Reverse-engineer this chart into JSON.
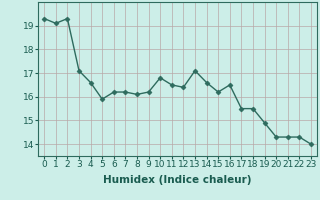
{
  "x": [
    0,
    1,
    2,
    3,
    4,
    5,
    6,
    7,
    8,
    9,
    10,
    11,
    12,
    13,
    14,
    15,
    16,
    17,
    18,
    19,
    20,
    21,
    22,
    23
  ],
  "y": [
    19.3,
    19.1,
    19.3,
    17.1,
    16.6,
    15.9,
    16.2,
    16.2,
    16.1,
    16.2,
    16.8,
    16.5,
    16.4,
    17.1,
    16.6,
    16.2,
    16.5,
    15.5,
    15.5,
    14.9,
    14.3,
    14.3,
    14.3,
    14.0
  ],
  "line_color": "#2e6b5e",
  "marker": "D",
  "marker_size": 2.5,
  "bg_color": "#cceee8",
  "grid_color": "#b8a8a8",
  "xlabel": "Humidex (Indice chaleur)",
  "ylim": [
    13.5,
    20.0
  ],
  "xlim": [
    -0.5,
    23.5
  ],
  "yticks": [
    14,
    15,
    16,
    17,
    18,
    19
  ],
  "xticks": [
    0,
    1,
    2,
    3,
    4,
    5,
    6,
    7,
    8,
    9,
    10,
    11,
    12,
    13,
    14,
    15,
    16,
    17,
    18,
    19,
    20,
    21,
    22,
    23
  ],
  "xlabel_fontsize": 7.5,
  "tick_fontsize": 6.5,
  "linewidth": 1.0
}
